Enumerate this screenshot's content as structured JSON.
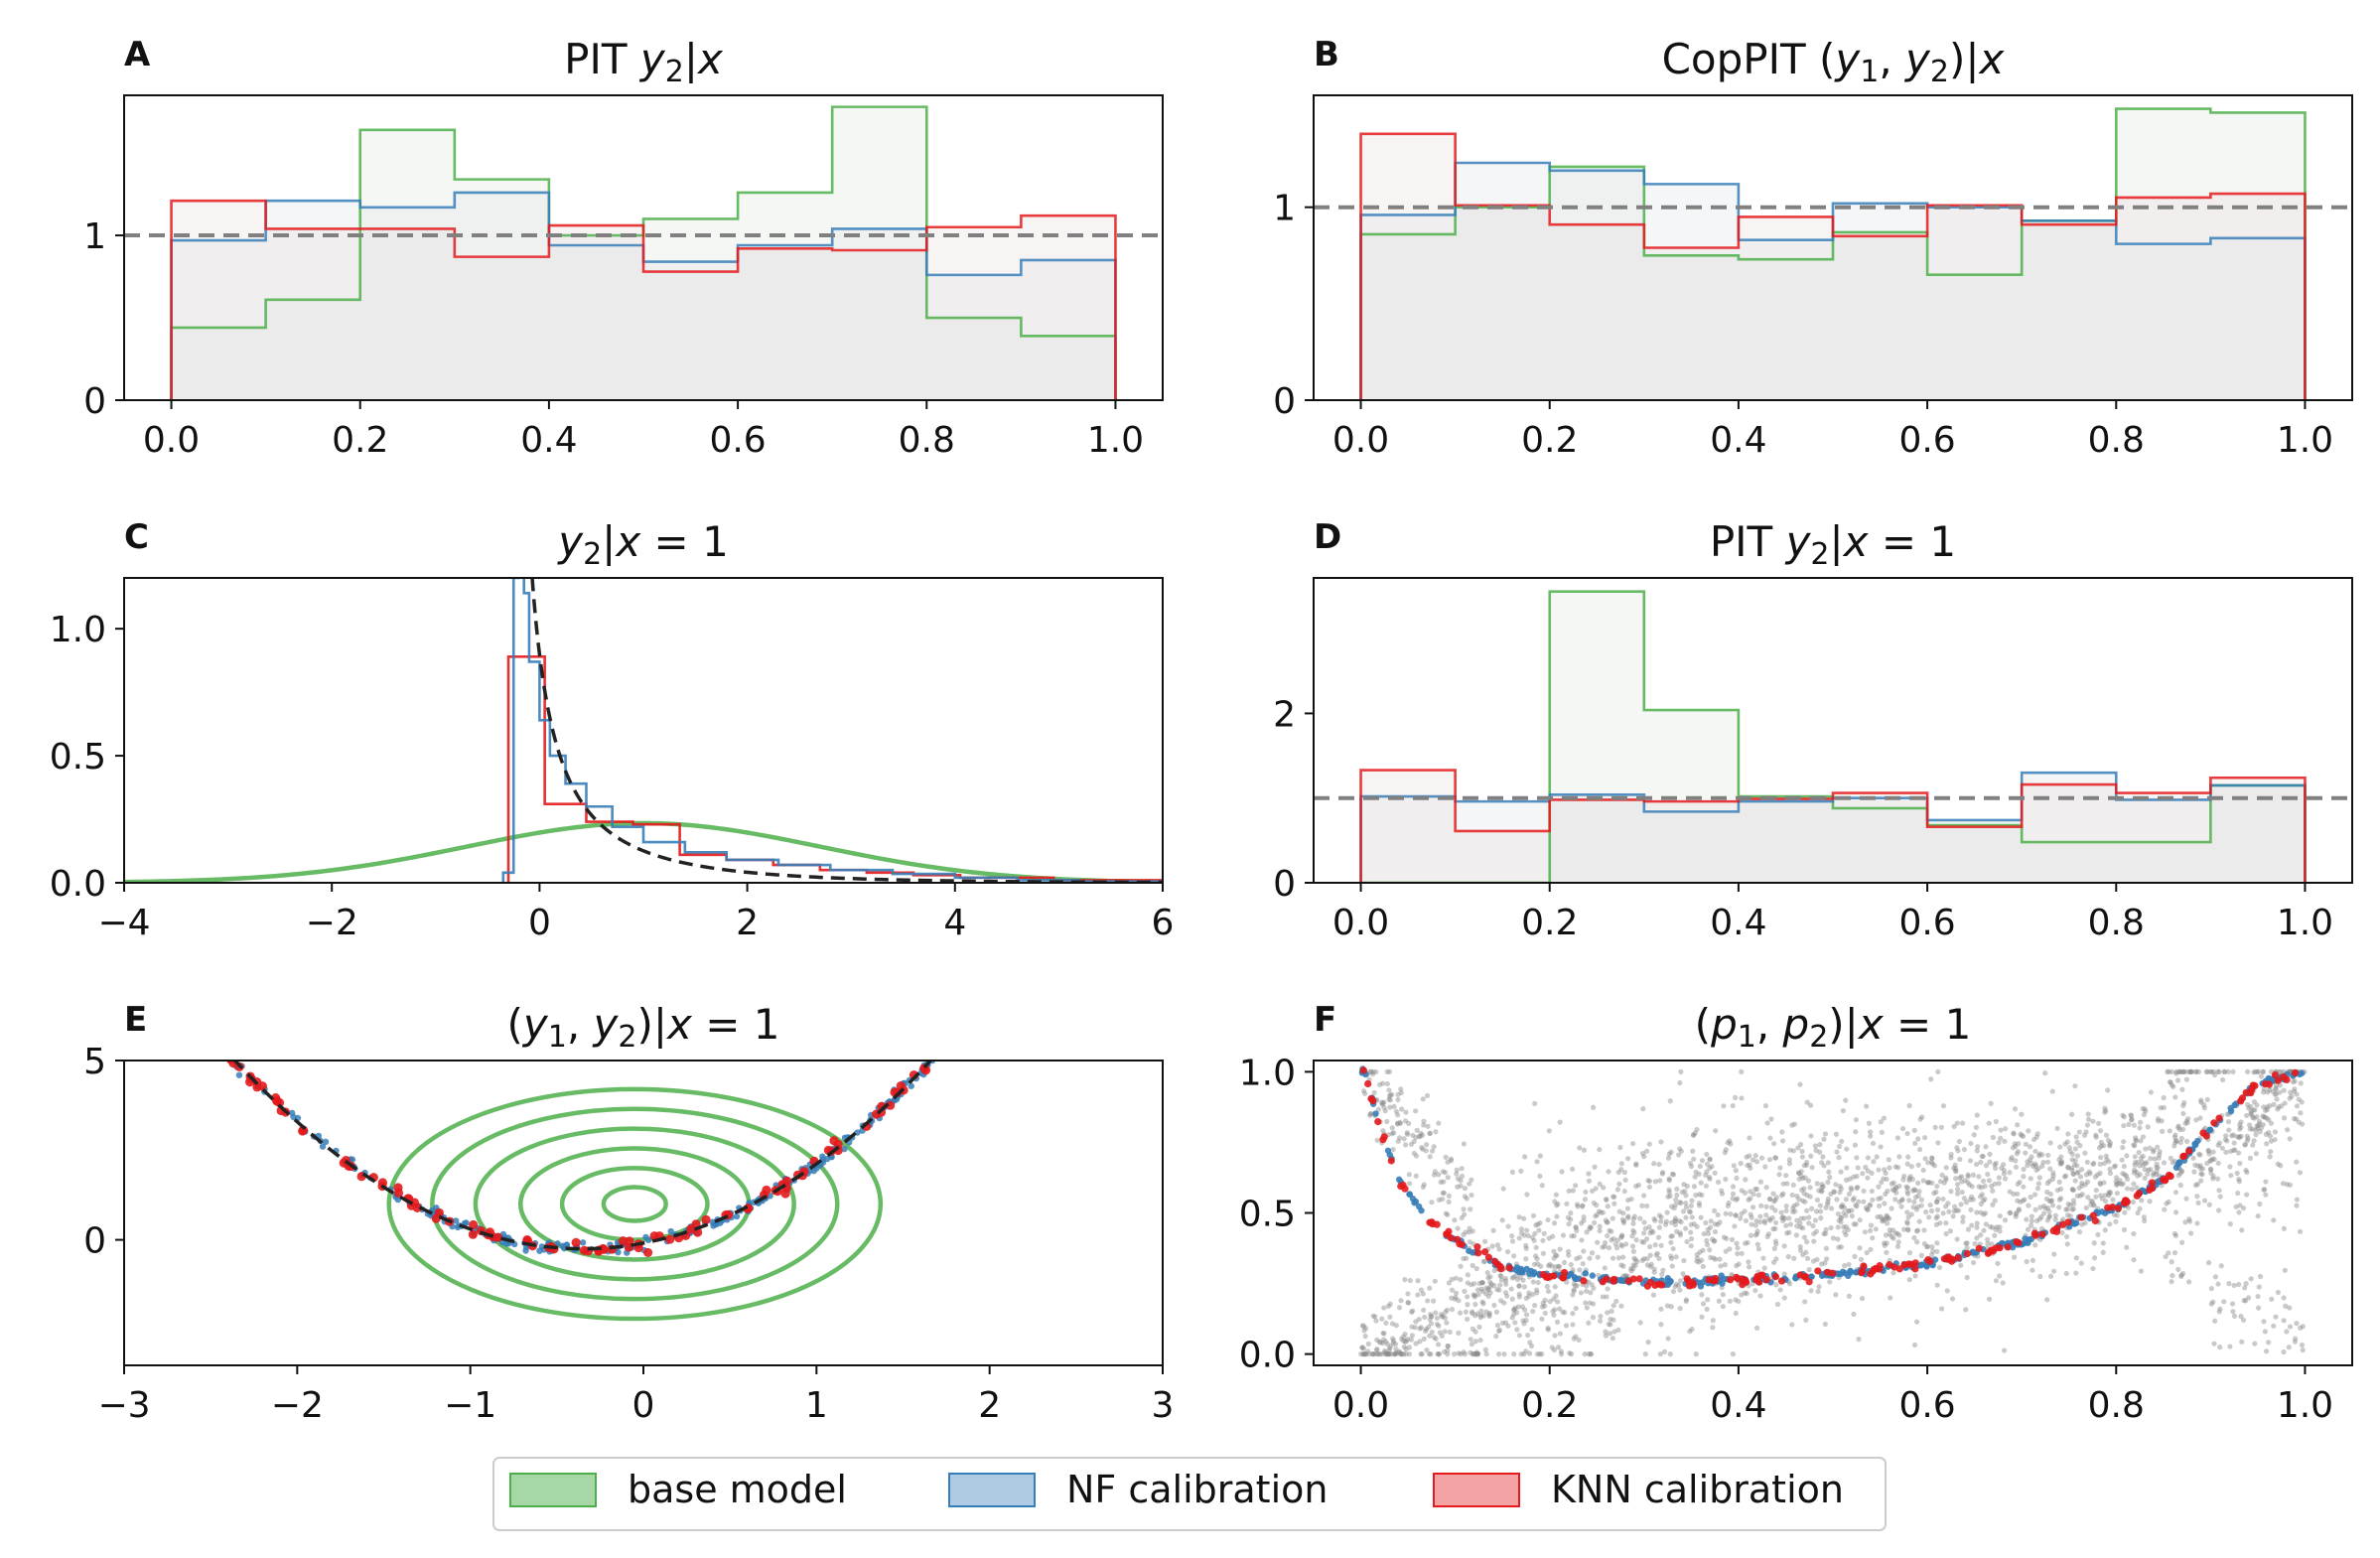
{
  "colors": {
    "base": "#4daf4a",
    "nf": "#377eb8",
    "knn": "#e41a1c",
    "ref": "#808080",
    "true": "#222222",
    "fill": "#f2f2f2",
    "grid_scatter": "#8a8a8a"
  },
  "legend": {
    "items": [
      {
        "label": "base model",
        "color": "#4daf4a"
      },
      {
        "label": "NF calibration",
        "color": "#377eb8"
      },
      {
        "label": "KNN calibration",
        "color": "#e41a1c"
      }
    ]
  },
  "chart_data": [
    {
      "panel": "A",
      "type": "histogram-step",
      "title": "PIT y₂|x",
      "xlim": [
        -0.05,
        1.05
      ],
      "ylim": [
        0,
        1.85
      ],
      "xticks": [
        "0.0",
        "0.2",
        "0.4",
        "0.6",
        "0.8",
        "1.0"
      ],
      "xtick_values": [
        0,
        0.2,
        0.4,
        0.6,
        0.8,
        1.0
      ],
      "yticks": [
        "0",
        "1"
      ],
      "ytick_values": [
        0,
        1
      ],
      "bin_edges": [
        0,
        0.1,
        0.2,
        0.3,
        0.4,
        0.5,
        0.6,
        0.7,
        0.8,
        0.9,
        1.0
      ],
      "reference_line": 1,
      "series": [
        {
          "name": "base model",
          "values": [
            0.44,
            0.61,
            1.64,
            1.34,
            1.0,
            1.1,
            1.26,
            1.78,
            0.5,
            0.39
          ]
        },
        {
          "name": "NF calibration",
          "values": [
            0.97,
            1.21,
            1.17,
            1.26,
            0.94,
            0.84,
            0.94,
            1.04,
            0.76,
            0.85
          ]
        },
        {
          "name": "KNN calibration",
          "values": [
            1.21,
            1.04,
            1.04,
            0.87,
            1.06,
            0.78,
            0.92,
            0.91,
            1.05,
            1.12
          ]
        }
      ]
    },
    {
      "panel": "B",
      "type": "histogram-step",
      "title": "CopPIT (y₁, y₂)|x",
      "xlim": [
        -0.05,
        1.05
      ],
      "ylim": [
        0,
        1.58
      ],
      "xticks": [
        "0.0",
        "0.2",
        "0.4",
        "0.6",
        "0.8",
        "1.0"
      ],
      "xtick_values": [
        0,
        0.2,
        0.4,
        0.6,
        0.8,
        1.0
      ],
      "yticks": [
        "0",
        "1"
      ],
      "ytick_values": [
        0,
        1
      ],
      "bin_edges": [
        0,
        0.1,
        0.2,
        0.3,
        0.4,
        0.5,
        0.6,
        0.7,
        0.8,
        0.9,
        1.0
      ],
      "reference_line": 1,
      "series": [
        {
          "name": "base model",
          "values": [
            0.86,
            1.0,
            1.21,
            0.75,
            0.73,
            0.87,
            0.65,
            0.93,
            1.51,
            1.49
          ]
        },
        {
          "name": "NF calibration",
          "values": [
            0.96,
            1.23,
            1.19,
            1.12,
            0.83,
            1.02,
            1.0,
            0.93,
            0.81,
            0.84
          ]
        },
        {
          "name": "KNN calibration",
          "values": [
            1.38,
            1.01,
            0.91,
            0.79,
            0.95,
            0.85,
            1.01,
            0.91,
            1.05,
            1.07
          ]
        }
      ]
    },
    {
      "panel": "C",
      "type": "density",
      "title": "y₂|x = 1",
      "xlim": [
        -4,
        6
      ],
      "ylim": [
        0,
        1.2
      ],
      "xticks": [
        "−4",
        "−2",
        "0",
        "2",
        "4",
        "6"
      ],
      "xtick_values": [
        -4,
        -2,
        0,
        2,
        4,
        6
      ],
      "yticks": [
        "0.0",
        "0.5",
        "1.0"
      ],
      "ytick_values": [
        0,
        0.5,
        1.0
      ],
      "base_model_normal": {
        "mean": 1.0,
        "sd": 1.7
      },
      "true_density_support_min": -0.25,
      "knn_hist": {
        "bin_edges": [
          -0.3,
          0.05,
          0.45,
          0.9,
          1.35,
          1.8,
          2.25,
          2.7,
          3.15,
          3.6,
          4.05,
          4.5,
          4.95,
          5.4,
          6.0
        ],
        "values": [
          0.89,
          0.31,
          0.24,
          0.23,
          0.11,
          0.09,
          0.07,
          0.05,
          0.04,
          0.03,
          0.02,
          0.02,
          0.01,
          0.01
        ]
      },
      "nf_hist": {
        "bin_edges": [
          -0.35,
          -0.25,
          -0.2,
          -0.15,
          -0.1,
          0.0,
          0.1,
          0.25,
          0.45,
          0.7,
          1.0,
          1.4,
          1.8,
          2.3,
          2.8,
          3.4,
          4.0,
          4.6,
          5.2,
          6.0
        ],
        "values": [
          0.04,
          1.2,
          1.25,
          1.14,
          0.87,
          0.64,
          0.5,
          0.39,
          0.3,
          0.22,
          0.16,
          0.12,
          0.09,
          0.07,
          0.05,
          0.035,
          0.02,
          0.01,
          0.005
        ]
      }
    },
    {
      "panel": "D",
      "type": "histogram-step",
      "title": "PIT y₂|x = 1",
      "xlim": [
        -0.05,
        1.05
      ],
      "ylim": [
        0,
        3.6
      ],
      "xticks": [
        "0.0",
        "0.2",
        "0.4",
        "0.6",
        "0.8",
        "1.0"
      ],
      "xtick_values": [
        0,
        0.2,
        0.4,
        0.6,
        0.8,
        1.0
      ],
      "yticks": [
        "0",
        "2"
      ],
      "ytick_values": [
        0,
        2
      ],
      "bin_edges": [
        0,
        0.1,
        0.2,
        0.3,
        0.4,
        0.5,
        0.6,
        0.7,
        0.8,
        0.9,
        1.0
      ],
      "reference_line": 1,
      "series": [
        {
          "name": "base model",
          "values": [
            0,
            0,
            3.44,
            2.04,
            1.02,
            0.88,
            0.68,
            0.48,
            0.48,
            1.15
          ]
        },
        {
          "name": "NF calibration",
          "values": [
            1.02,
            0.96,
            1.04,
            0.84,
            0.96,
            1.0,
            0.74,
            1.3,
            0.98,
            1.15
          ]
        },
        {
          "name": "KNN calibration",
          "values": [
            1.33,
            0.61,
            0.98,
            0.96,
            0.99,
            1.06,
            0.66,
            1.16,
            1.06,
            1.24
          ]
        }
      ]
    },
    {
      "panel": "E",
      "type": "scatter+contour",
      "title": "(y₁, y₂)|x = 1",
      "xlim": [
        -3,
        3
      ],
      "ylim": [
        -3.5,
        5
      ],
      "xticks": [
        "−3",
        "−2",
        "−1",
        "0",
        "1",
        "2",
        "3"
      ],
      "xtick_values": [
        -3,
        -2,
        -1,
        0,
        1,
        2,
        3
      ],
      "yticks": [
        "0",
        "5"
      ],
      "ytick_values": [
        0,
        5
      ],
      "true_curve": {
        "form": "y = a*(x - b)^2 + c",
        "a": 1.3,
        "b": -0.35,
        "c": -0.25
      },
      "base_model_contours": {
        "center": [
          -0.05,
          1.0
        ],
        "semi_axis_x": [
          0.18,
          0.42,
          0.66,
          0.92,
          1.17,
          1.42
        ],
        "semi_axis_y": [
          0.47,
          1.0,
          1.55,
          2.1,
          2.65,
          3.2
        ]
      },
      "nf_sample_range": [
        -2.45,
        1.7
      ],
      "knn_sample_range": [
        -2.6,
        1.75
      ]
    },
    {
      "panel": "F",
      "type": "scatter",
      "title": "(p₁, p₂)|x = 1",
      "xlim": [
        -0.05,
        1.05
      ],
      "ylim": [
        -0.04,
        1.04
      ],
      "xticks": [
        "0.0",
        "0.2",
        "0.4",
        "0.6",
        "0.8",
        "1.0"
      ],
      "xtick_values": [
        0,
        0.2,
        0.4,
        0.6,
        0.8,
        1.0
      ],
      "yticks": [
        "0.0",
        "0.5",
        "1.0"
      ],
      "ytick_values": [
        0,
        0.5,
        1.0
      ],
      "curve_points": [
        [
          0.005,
          0.99
        ],
        [
          0.02,
          0.8
        ],
        [
          0.04,
          0.62
        ],
        [
          0.07,
          0.48
        ],
        [
          0.1,
          0.4
        ],
        [
          0.15,
          0.31
        ],
        [
          0.2,
          0.28
        ],
        [
          0.3,
          0.255
        ],
        [
          0.4,
          0.26
        ],
        [
          0.5,
          0.28
        ],
        [
          0.6,
          0.32
        ],
        [
          0.7,
          0.4
        ],
        [
          0.8,
          0.52
        ],
        [
          0.85,
          0.62
        ],
        [
          0.9,
          0.8
        ],
        [
          0.95,
          0.96
        ],
        [
          1.0,
          1.0
        ]
      ],
      "base_cloud_bands": [
        [
          0.0,
          0.0,
          0.05
        ],
        [
          0.2,
          0.3,
          0.45
        ],
        [
          0.4,
          0.5,
          0.55
        ],
        [
          0.6,
          0.55,
          0.62
        ],
        [
          0.8,
          0.62,
          0.68
        ],
        [
          0.85,
          0.7,
          0.73
        ],
        [
          1.0,
          0.85,
          0.95
        ]
      ]
    }
  ]
}
